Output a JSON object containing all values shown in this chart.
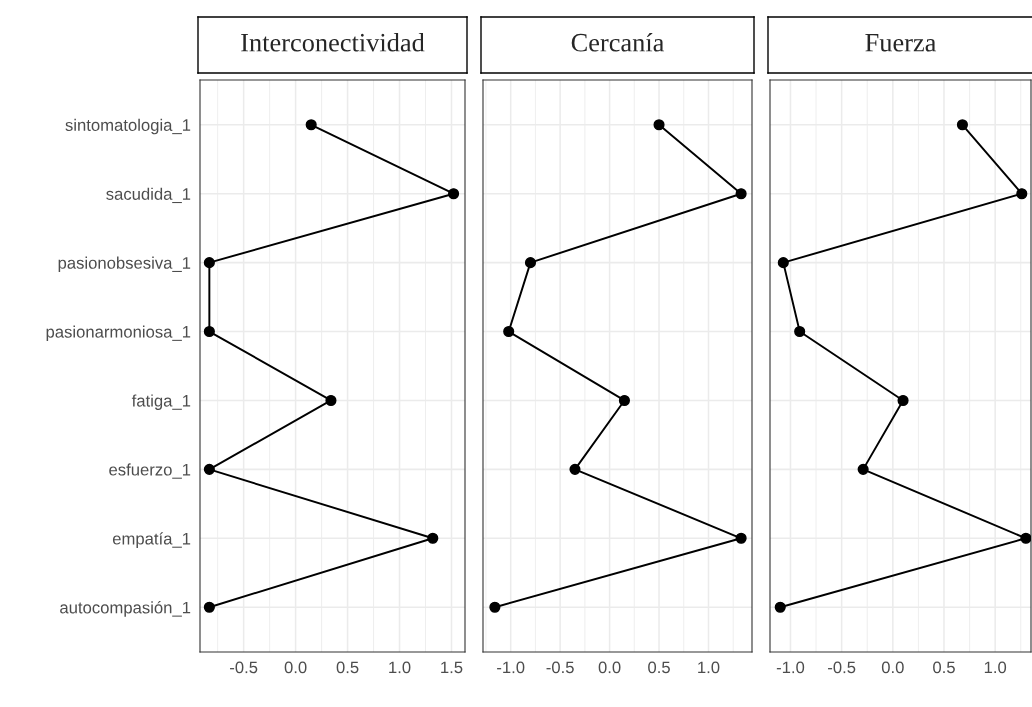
{
  "chart_data": [
    {
      "type": "line",
      "orientation": "horizontal",
      "title": "Interconectividad",
      "categories": [
        "sintomatologia_1",
        "sacudida_1",
        "pasionobsesiva_1",
        "pasionarmoniosa_1",
        "fatiga_1",
        "esfuerzo_1",
        "empatía_1",
        "autocompasión_1"
      ],
      "series": [
        {
          "color": "#000000",
          "values": [
            0.15,
            1.52,
            -0.83,
            -0.83,
            0.34,
            -0.83,
            1.32,
            -0.83
          ]
        }
      ],
      "xlim": [
        -0.92,
        1.63
      ],
      "xticks": [
        {
          "value": -0.5,
          "label": "-0.5"
        },
        {
          "value": 0.0,
          "label": "0.0"
        },
        {
          "value": 0.5,
          "label": "0.5"
        },
        {
          "value": 1.0,
          "label": "1.0"
        },
        {
          "value": 1.5,
          "label": "1.5"
        }
      ],
      "grid": true,
      "marker": "circle",
      "line_style": "solid"
    },
    {
      "type": "line",
      "orientation": "horizontal",
      "title": "Cercanía",
      "categories": [
        null,
        null,
        null,
        null,
        null,
        null,
        null,
        null
      ],
      "series": [
        {
          "color": "#000000",
          "values": [
            0.5,
            1.33,
            -0.8,
            -1.02,
            0.15,
            -0.35,
            1.33,
            -1.16
          ]
        }
      ],
      "xlim": [
        -1.28,
        1.44
      ],
      "xticks": [
        {
          "value": -1.0,
          "label": "-1.0"
        },
        {
          "value": -0.5,
          "label": "-0.5"
        },
        {
          "value": 0.0,
          "label": "0.0"
        },
        {
          "value": 0.5,
          "label": "0.5"
        },
        {
          "value": 1.0,
          "label": "1.0"
        }
      ],
      "grid": true,
      "marker": "circle",
      "line_style": "solid",
      "tick_labels": "x"
    },
    {
      "type": "line",
      "orientation": "horizontal",
      "title": "Fuerza",
      "categories": [
        null,
        null,
        null,
        null,
        null,
        null,
        null,
        null
      ],
      "series": [
        {
          "color": "#000000",
          "values": [
            0.68,
            1.26,
            -1.07,
            -0.91,
            0.1,
            -0.29,
            1.3,
            -1.1
          ]
        }
      ],
      "xlim": [
        -1.2,
        1.35
      ],
      "xticks": [
        {
          "value": -1.0,
          "label": "-1.0"
        },
        {
          "value": -0.5,
          "label": "-0.5"
        },
        {
          "value": 0.0,
          "label": "0.0"
        },
        {
          "value": 0.5,
          "label": "0.5"
        },
        {
          "value": 1.0,
          "label": "1.0"
        }
      ],
      "grid": true,
      "marker": "circle",
      "line_style": "solid",
      "tick_labels": "x"
    }
  ]
}
